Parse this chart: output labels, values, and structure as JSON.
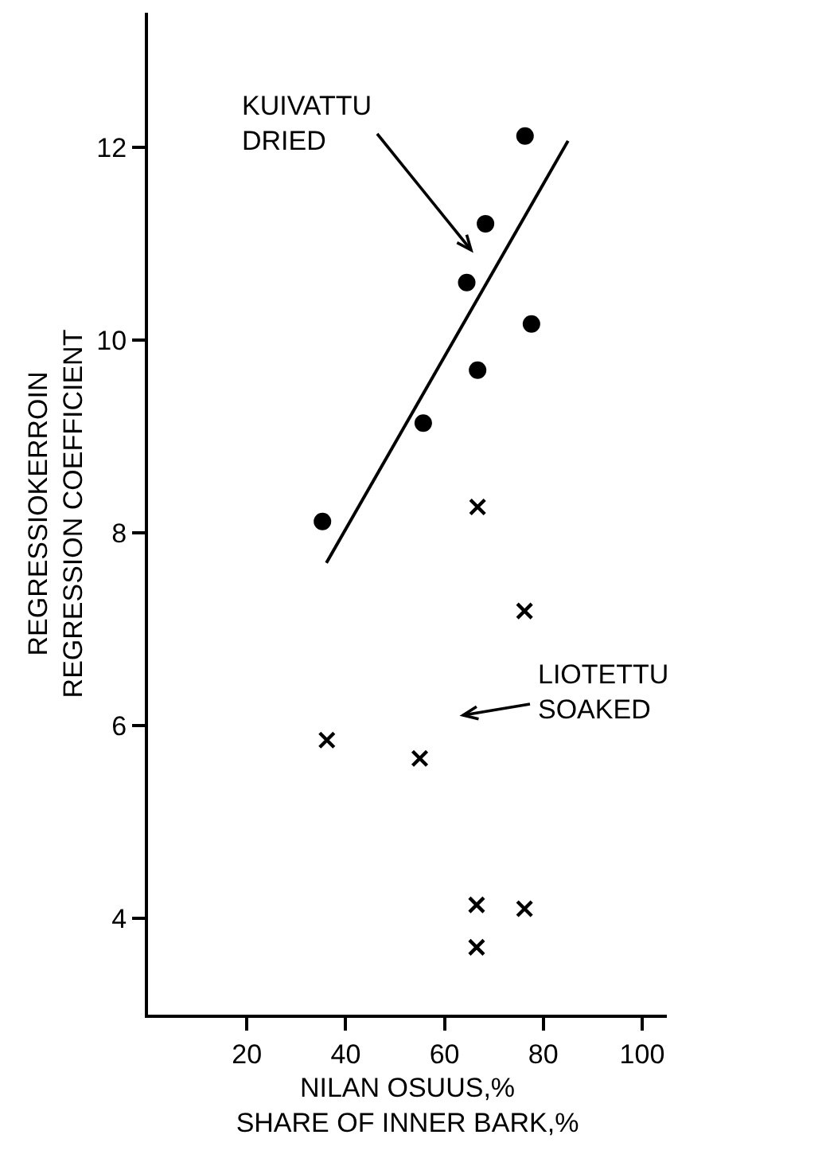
{
  "chart_data": {
    "type": "scatter",
    "xlabel": "NILAN OSUUS,%\nSHARE OF INNER BARK,%",
    "ylabel": "REGRESSIOKERROIN\nREGRESSION COEFFICIENT",
    "xlim": [
      0,
      105
    ],
    "xticks": [
      20,
      40,
      60,
      80,
      100
    ],
    "ylim": [
      3,
      13.4
    ],
    "yticks": [
      4,
      6,
      8,
      10,
      12
    ],
    "grid": false,
    "series": [
      {
        "color": "#000000",
        "marker": "circle",
        "x": [
          76.3,
          68.3,
          64.5,
          77.6,
          66.7,
          55.7,
          35.3
        ],
        "values": [
          12.12,
          11.21,
          10.6,
          10.17,
          9.69,
          9.14,
          8.12
        ]
      },
      {
        "type": "line",
        "color": "#000000",
        "marker": "none",
        "line_style": "solid",
        "x": [
          36.1,
          85.0
        ],
        "values": [
          7.69,
          12.07
        ]
      },
      {
        "color": "#000000",
        "marker": "cross",
        "x": [
          66.7,
          76.2,
          36.2,
          55.0,
          66.5,
          76.2,
          66.5
        ],
        "values": [
          8.27,
          7.19,
          5.85,
          5.66,
          4.14,
          4.1,
          3.7
        ]
      }
    ],
    "annotations": [
      "KUIVATTU\nDRIED",
      "LIOTETTU\nSOAKED"
    ]
  }
}
